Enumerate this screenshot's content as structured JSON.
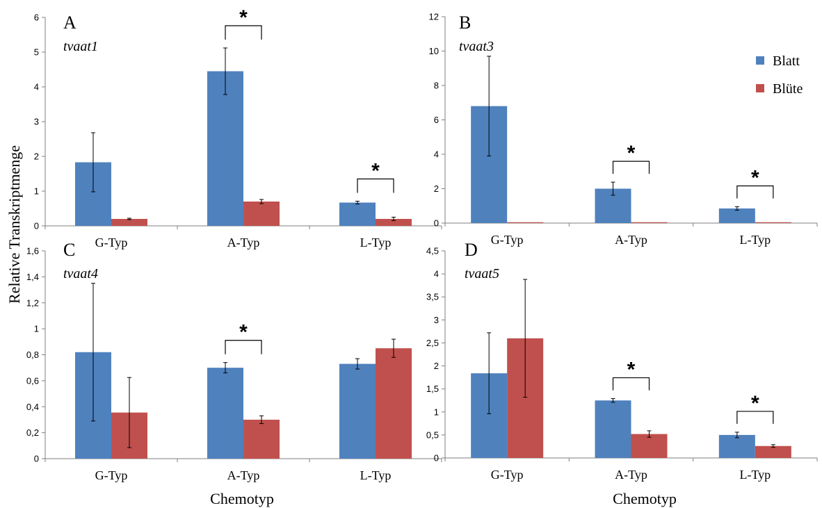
{
  "figure": {
    "ylabel": "Relative Transkriptmenge",
    "xlabel_left": "Chemotyp",
    "xlabel_right": "Chemotyp"
  },
  "legend": [
    {
      "name": "Blatt",
      "color": "#4f81bd"
    },
    {
      "name": "Blüte",
      "color": "#c0504d"
    }
  ],
  "chart_data": [
    {
      "type": "bar",
      "panel": "A",
      "gene": "tvaat1",
      "categories": [
        "G-Typ",
        "A-Typ",
        "L-Typ"
      ],
      "series": [
        {
          "name": "Blatt",
          "values": [
            1.83,
            4.45,
            0.67
          ],
          "errors": [
            0.85,
            0.67,
            0.04
          ]
        },
        {
          "name": "Blüte",
          "values": [
            0.2,
            0.7,
            0.2
          ],
          "errors": [
            0.02,
            0.06,
            0.05
          ]
        }
      ],
      "ylim": [
        0,
        6
      ],
      "yticks": [
        0,
        1,
        2,
        3,
        4,
        5,
        6
      ],
      "ytick_labels": [
        "0",
        "1",
        "2",
        "3",
        "4",
        "5",
        "6"
      ],
      "significance": [
        {
          "category": "A-Typ",
          "label": "*"
        },
        {
          "category": "L-Typ",
          "label": "*"
        }
      ]
    },
    {
      "type": "bar",
      "panel": "B",
      "gene": "tvaat3",
      "categories": [
        "G-Typ",
        "A-Typ",
        "L-Typ"
      ],
      "series": [
        {
          "name": "Blatt",
          "values": [
            6.8,
            2.0,
            0.85
          ],
          "errors": [
            2.9,
            0.38,
            0.1
          ]
        },
        {
          "name": "Blüte",
          "values": [
            0.05,
            0.05,
            0.05
          ],
          "errors": [
            0,
            0,
            0
          ]
        }
      ],
      "ylim": [
        0,
        12
      ],
      "yticks": [
        0,
        2,
        4,
        6,
        8,
        10,
        12
      ],
      "ytick_labels": [
        "0",
        "2",
        "4",
        "6",
        "8",
        "10",
        "12"
      ],
      "significance": [
        {
          "category": "A-Typ",
          "label": "*"
        },
        {
          "category": "L-Typ",
          "label": "*"
        }
      ]
    },
    {
      "type": "bar",
      "panel": "C",
      "gene": "tvaat4",
      "categories": [
        "G-Typ",
        "A-Typ",
        "L-Typ"
      ],
      "series": [
        {
          "name": "Blatt",
          "values": [
            0.82,
            0.7,
            0.73
          ],
          "errors": [
            0.53,
            0.04,
            0.04
          ]
        },
        {
          "name": "Blüte",
          "values": [
            0.355,
            0.3,
            0.85
          ],
          "errors": [
            0.27,
            0.03,
            0.07
          ]
        }
      ],
      "ylim": [
        0,
        1.6
      ],
      "yticks": [
        0,
        0.2,
        0.4,
        0.6,
        0.8,
        1.0,
        1.2,
        1.4,
        1.6
      ],
      "ytick_labels": [
        "0",
        "0,2",
        "0,4",
        "0,6",
        "0,8",
        "1",
        "1,2",
        "1,4",
        "1,6"
      ],
      "significance": [
        {
          "category": "A-Typ",
          "label": "*"
        }
      ]
    },
    {
      "type": "bar",
      "panel": "D",
      "gene": "tvaat5",
      "categories": [
        "G-Typ",
        "A-Typ",
        "L-Typ"
      ],
      "series": [
        {
          "name": "Blatt",
          "values": [
            1.84,
            1.25,
            0.5
          ],
          "errors": [
            0.88,
            0.04,
            0.06
          ]
        },
        {
          "name": "Blüte",
          "values": [
            2.6,
            0.52,
            0.26
          ],
          "errors": [
            1.28,
            0.07,
            0.03
          ]
        }
      ],
      "ylim": [
        0,
        4.5
      ],
      "yticks": [
        0,
        0.5,
        1.0,
        1.5,
        2.0,
        2.5,
        3.0,
        3.5,
        4.0,
        4.5
      ],
      "ytick_labels": [
        "0",
        "0,5",
        "1",
        "1,5",
        "2",
        "2,5",
        "3",
        "3,5",
        "4",
        "4,5"
      ],
      "significance": [
        {
          "category": "A-Typ",
          "label": "*"
        },
        {
          "category": "L-Typ",
          "label": "*"
        }
      ]
    }
  ]
}
